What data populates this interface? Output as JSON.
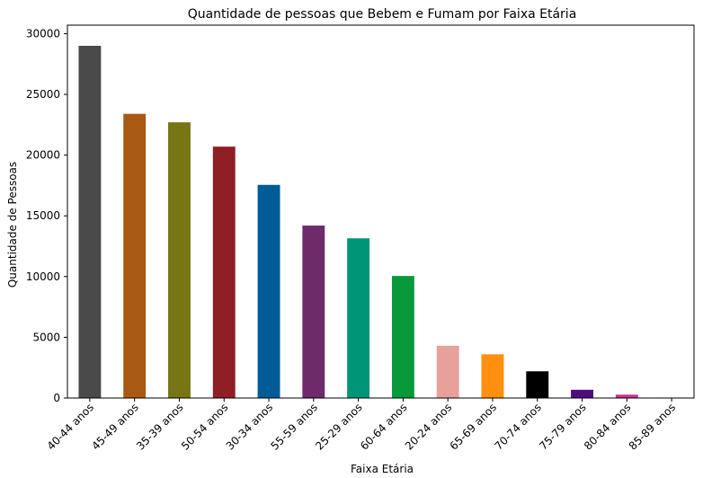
{
  "chart_data": {
    "type": "bar",
    "title": "Quantidade de pessoas que Bebem e Fumam por Faixa Etária",
    "xlabel": "Faixa Etária",
    "ylabel": "Quantidade de Pessoas",
    "categories": [
      "40-44 anos",
      "45-49 anos",
      "35-39 anos",
      "50-54 anos",
      "30-34 anos",
      "55-59 anos",
      "25-29 anos",
      "60-64 anos",
      "20-24 anos",
      "65-69 anos",
      "70-74 anos",
      "75-79 anos",
      "80-84 anos",
      "85-89 anos"
    ],
    "values": [
      29000,
      23400,
      22700,
      20700,
      17550,
      14200,
      13150,
      10050,
      4300,
      3600,
      2200,
      680,
      280,
      40
    ],
    "colors": [
      "#4a4a4a",
      "#a85a14",
      "#777514",
      "#8f1f25",
      "#005c96",
      "#6e2a6a",
      "#009577",
      "#089a3a",
      "#e8a09a",
      "#ff8f0f",
      "#000000",
      "#4f0c7e",
      "#c9318f",
      "#7fffd4"
    ],
    "ylim": [
      0,
      30700
    ],
    "yticks": [
      0,
      5000,
      10000,
      15000,
      20000,
      25000,
      30000
    ],
    "ytick_labels": [
      "0",
      "5000",
      "10000",
      "15000",
      "20000",
      "25000",
      "30000"
    ],
    "grid": false,
    "legend": "none"
  }
}
